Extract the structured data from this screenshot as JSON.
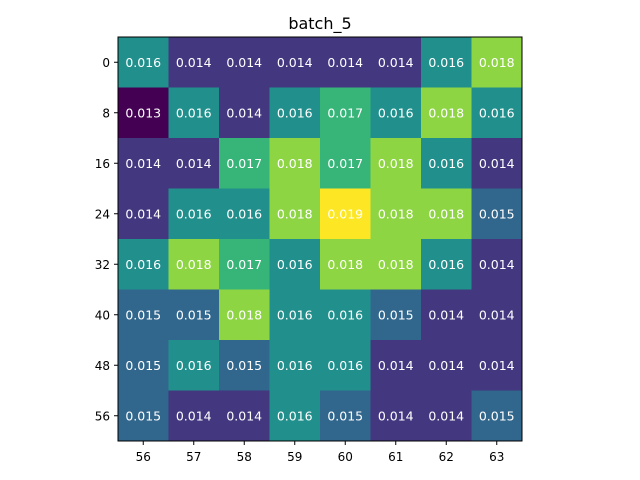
{
  "chart_data": {
    "type": "heatmap",
    "title": "batch_5",
    "xlabel": "",
    "ylabel": "",
    "x_categories": [
      "56",
      "57",
      "58",
      "59",
      "60",
      "61",
      "62",
      "63"
    ],
    "y_categories": [
      "0",
      "8",
      "16",
      "24",
      "32",
      "40",
      "48",
      "56"
    ],
    "values": [
      [
        0.016,
        0.014,
        0.014,
        0.014,
        0.014,
        0.014,
        0.016,
        0.018
      ],
      [
        0.013,
        0.016,
        0.014,
        0.016,
        0.017,
        0.016,
        0.018,
        0.016
      ],
      [
        0.014,
        0.014,
        0.017,
        0.018,
        0.017,
        0.018,
        0.016,
        0.014
      ],
      [
        0.014,
        0.016,
        0.016,
        0.018,
        0.019,
        0.018,
        0.018,
        0.015
      ],
      [
        0.016,
        0.018,
        0.017,
        0.016,
        0.018,
        0.018,
        0.016,
        0.014
      ],
      [
        0.015,
        0.015,
        0.018,
        0.016,
        0.016,
        0.015,
        0.014,
        0.014
      ],
      [
        0.015,
        0.016,
        0.015,
        0.016,
        0.016,
        0.014,
        0.014,
        0.014
      ],
      [
        0.015,
        0.014,
        0.014,
        0.016,
        0.015,
        0.014,
        0.014,
        0.015
      ]
    ],
    "colormap": "viridis",
    "value_range": [
      0.013,
      0.019
    ],
    "grid": false,
    "legend": "none"
  }
}
